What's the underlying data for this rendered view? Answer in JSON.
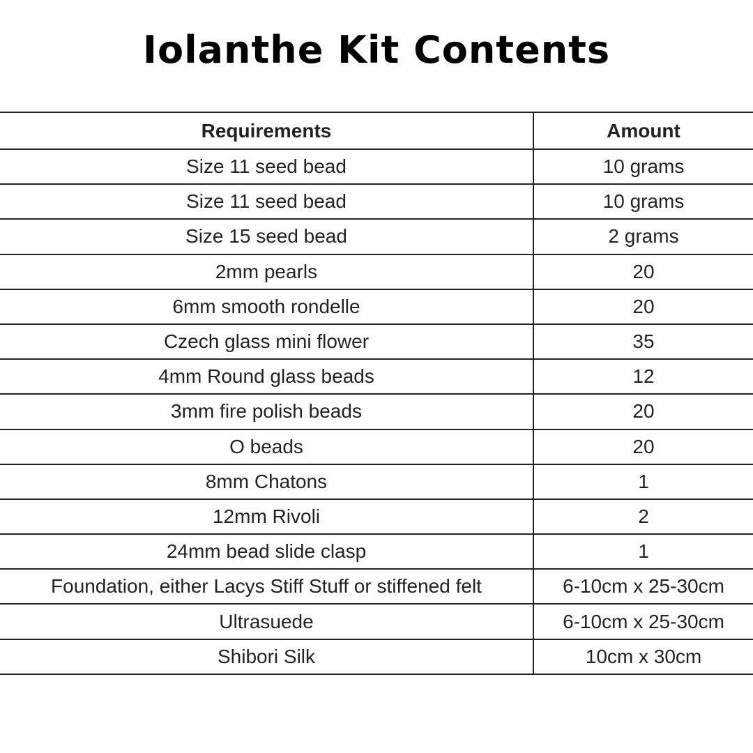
{
  "title": "Iolanthe Kit Contents",
  "table": {
    "headers": [
      "Requirements",
      "Amount"
    ],
    "rows": [
      [
        "Size 11 seed bead",
        "10 grams"
      ],
      [
        "Size 11 seed bead",
        "10 grams"
      ],
      [
        "Size 15 seed bead",
        "2 grams"
      ],
      [
        "2mm pearls",
        "20"
      ],
      [
        "6mm smooth rondelle",
        "20"
      ],
      [
        "Czech glass mini flower",
        "35"
      ],
      [
        "4mm Round glass beads",
        "12"
      ],
      [
        "3mm fire polish beads",
        "20"
      ],
      [
        "O beads",
        "20"
      ],
      [
        "8mm Chatons",
        "1"
      ],
      [
        "12mm Rivoli",
        "2"
      ],
      [
        "24mm bead slide clasp",
        "1"
      ],
      [
        "Foundation, either Lacys Stiff Stuff or stiffened felt",
        "6-10cm x 25-30cm"
      ],
      [
        "Ultrasuede",
        "6-10cm x 25-30cm"
      ],
      [
        "Shibori Silk",
        "10cm x 30cm"
      ]
    ]
  }
}
